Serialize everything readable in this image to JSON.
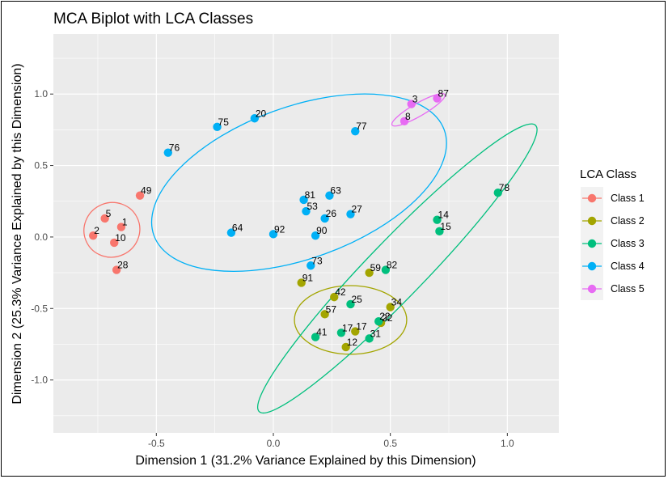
{
  "chart_data": {
    "type": "scatter",
    "title": "MCA Biplot with LCA Classes",
    "xlabel": "Dimension 1 (31.2% Variance Explained by this Dimension)",
    "ylabel": "Dimension 2 (25.3% Variance Explained by this Dimension)",
    "xlim": [
      -0.94,
      1.22
    ],
    "ylim": [
      -1.37,
      1.42
    ],
    "x_ticks": [
      -0.5,
      0.0,
      0.5,
      1.0
    ],
    "x_tick_labels": [
      "-0.5",
      "0.0",
      "0.5",
      "1.0"
    ],
    "y_ticks": [
      -1.0,
      -0.5,
      0.0,
      0.5,
      1.0
    ],
    "y_tick_labels": [
      "-1.0",
      "-0.5",
      "0.0",
      "0.5",
      "1.0"
    ],
    "grid": true,
    "legend": {
      "title": "LCA Class",
      "position": "right"
    },
    "series": [
      {
        "name": "Class 1",
        "color": "#F8766D",
        "points": [
          {
            "label": "5",
            "x": -0.72,
            "y": 0.13
          },
          {
            "label": "1",
            "x": -0.65,
            "y": 0.07
          },
          {
            "label": "2",
            "x": -0.77,
            "y": 0.01
          },
          {
            "label": "10",
            "x": -0.68,
            "y": -0.04
          },
          {
            "label": "28",
            "x": -0.67,
            "y": -0.23
          },
          {
            "label": "49",
            "x": -0.57,
            "y": 0.29
          }
        ],
        "ellipse": {
          "cx": -0.69,
          "cy": 0.05,
          "rx": 0.12,
          "ry": 0.19,
          "angle": -25
        }
      },
      {
        "name": "Class 2",
        "color": "#A3A500",
        "points": [
          {
            "label": "59",
            "x": 0.41,
            "y": -0.25
          },
          {
            "label": "91",
            "x": 0.12,
            "y": -0.32
          },
          {
            "label": "42",
            "x": 0.26,
            "y": -0.42
          },
          {
            "label": "57",
            "x": 0.22,
            "y": -0.54
          },
          {
            "label": "34",
            "x": 0.5,
            "y": -0.49
          },
          {
            "label": "22",
            "x": 0.46,
            "y": -0.6
          },
          {
            "label": "17",
            "x": 0.35,
            "y": -0.66
          },
          {
            "label": "12",
            "x": 0.31,
            "y": -0.77
          }
        ],
        "ellipse": {
          "cx": 0.33,
          "cy": -0.58,
          "rx": 0.24,
          "ry": 0.24,
          "angle": 0
        }
      },
      {
        "name": "Class 3",
        "color": "#00BF7D",
        "points": [
          {
            "label": "78",
            "x": 0.96,
            "y": 0.31
          },
          {
            "label": "14",
            "x": 0.7,
            "y": 0.12
          },
          {
            "label": "15",
            "x": 0.71,
            "y": 0.04
          },
          {
            "label": "82",
            "x": 0.48,
            "y": -0.23
          },
          {
            "label": "25",
            "x": 0.33,
            "y": -0.47
          },
          {
            "label": "22",
            "x": 0.45,
            "y": -0.59
          },
          {
            "label": "31",
            "x": 0.41,
            "y": -0.71
          },
          {
            "label": "17",
            "x": 0.29,
            "y": -0.67
          },
          {
            "label": "41",
            "x": 0.18,
            "y": -0.7
          }
        ],
        "ellipse": {
          "cx": 0.53,
          "cy": -0.22,
          "rx": 0.85,
          "ry": 0.2,
          "angle": -46
        }
      },
      {
        "name": "Class 4",
        "color": "#00B0F6",
        "points": [
          {
            "label": "20",
            "x": -0.08,
            "y": 0.83
          },
          {
            "label": "75",
            "x": -0.24,
            "y": 0.77
          },
          {
            "label": "77",
            "x": 0.35,
            "y": 0.74
          },
          {
            "label": "76",
            "x": -0.45,
            "y": 0.59
          },
          {
            "label": "81",
            "x": 0.13,
            "y": 0.26
          },
          {
            "label": "63",
            "x": 0.24,
            "y": 0.29
          },
          {
            "label": "53",
            "x": 0.14,
            "y": 0.18
          },
          {
            "label": "26",
            "x": 0.22,
            "y": 0.13
          },
          {
            "label": "27",
            "x": 0.33,
            "y": 0.16
          },
          {
            "label": "64",
            "x": -0.18,
            "y": 0.03
          },
          {
            "label": "92",
            "x": 0.0,
            "y": 0.02
          },
          {
            "label": "90",
            "x": 0.18,
            "y": 0.01
          },
          {
            "label": "73",
            "x": 0.16,
            "y": -0.2
          }
        ],
        "ellipse": {
          "cx": 0.11,
          "cy": 0.38,
          "rx": 0.66,
          "ry": 0.53,
          "angle": -20
        }
      },
      {
        "name": "Class 5",
        "color": "#E76BF3",
        "points": [
          {
            "label": "3",
            "x": 0.59,
            "y": 0.93
          },
          {
            "label": "87",
            "x": 0.7,
            "y": 0.97
          },
          {
            "label": "8",
            "x": 0.56,
            "y": 0.81
          }
        ],
        "ellipse": {
          "cx": 0.62,
          "cy": 0.89,
          "rx": 0.13,
          "ry": 0.045,
          "angle": -30
        }
      }
    ]
  }
}
